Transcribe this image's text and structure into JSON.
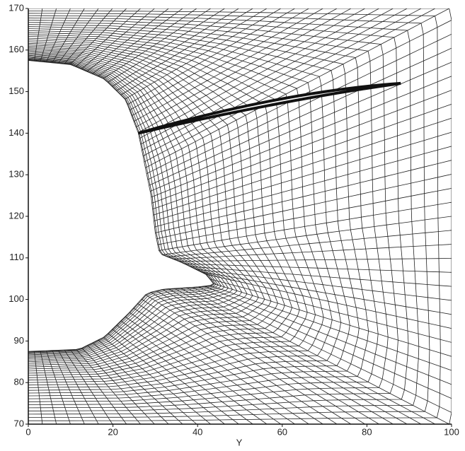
{
  "chart_data": {
    "type": "mesh",
    "xlabel": "Y",
    "xlim": [
      0,
      100
    ],
    "xticks": [
      0,
      20,
      40,
      60,
      80,
      100
    ],
    "ylim": [
      70,
      170
    ],
    "yticks": [
      70,
      80,
      90,
      100,
      110,
      120,
      130,
      140,
      150,
      160,
      170
    ]
  }
}
